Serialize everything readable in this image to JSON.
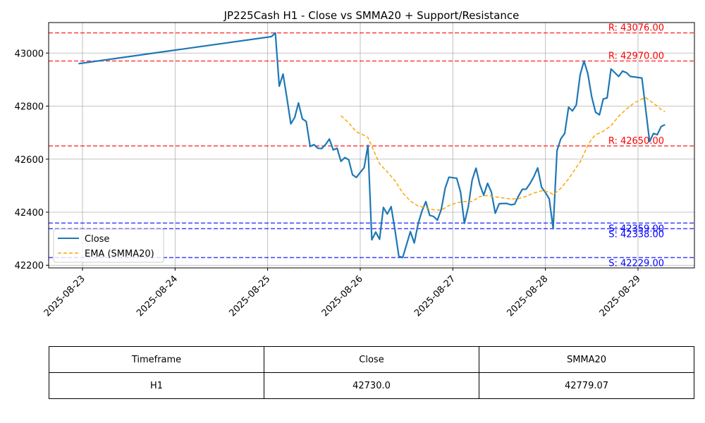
{
  "chart_data": {
    "type": "line",
    "title": "JP225Cash H1 - Close vs SMMA20 + Support/Resistance",
    "xlabel": "",
    "ylabel": "",
    "x_ticks": [
      "2025-08-23",
      "2025-08-24",
      "2025-08-25",
      "2025-08-26",
      "2025-08-27",
      "2025-08-28",
      "2025-08-29"
    ],
    "y_ticks": [
      42200,
      42400,
      42600,
      42800,
      43000
    ],
    "ylim": [
      42190,
      43115
    ],
    "grid": true,
    "legend_position": "lower-left",
    "series": [
      {
        "name": "Close",
        "color": "#1f77b4",
        "style": "solid",
        "points": [
          [
            "2025-08-22T23:00",
            42960
          ],
          [
            "2025-08-25T01:00",
            43062
          ],
          [
            "2025-08-25T02:00",
            43076
          ],
          [
            "2025-08-25T03:00",
            42875
          ],
          [
            "2025-08-25T04:00",
            42921
          ],
          [
            "2025-08-25T05:00",
            42830
          ],
          [
            "2025-08-25T06:00",
            42733
          ],
          [
            "2025-08-25T07:00",
            42757
          ],
          [
            "2025-08-25T08:00",
            42812
          ],
          [
            "2025-08-25T09:00",
            42752
          ],
          [
            "2025-08-25T10:00",
            42742
          ],
          [
            "2025-08-25T11:00",
            42648
          ],
          [
            "2025-08-25T12:00",
            42655
          ],
          [
            "2025-08-25T13:00",
            42641
          ],
          [
            "2025-08-25T14:00",
            42640
          ],
          [
            "2025-08-25T15:00",
            42655
          ],
          [
            "2025-08-25T16:00",
            42676
          ],
          [
            "2025-08-25T17:00",
            42635
          ],
          [
            "2025-08-25T18:00",
            42641
          ],
          [
            "2025-08-25T19:00",
            42592
          ],
          [
            "2025-08-25T20:00",
            42606
          ],
          [
            "2025-08-25T21:00",
            42598
          ],
          [
            "2025-08-25T22:00",
            42541
          ],
          [
            "2025-08-25T23:00",
            42531
          ],
          [
            "2025-08-26T00:00",
            42550
          ],
          [
            "2025-08-26T01:00",
            42568
          ],
          [
            "2025-08-26T02:00",
            42652
          ],
          [
            "2025-08-26T03:00",
            42296
          ],
          [
            "2025-08-26T04:00",
            42325
          ],
          [
            "2025-08-26T05:00",
            42298
          ],
          [
            "2025-08-26T06:00",
            42418
          ],
          [
            "2025-08-26T07:00",
            42393
          ],
          [
            "2025-08-26T08:00",
            42421
          ],
          [
            "2025-08-26T09:00",
            42334
          ],
          [
            "2025-08-26T10:00",
            42234
          ],
          [
            "2025-08-26T11:00",
            42229
          ],
          [
            "2025-08-26T12:00",
            42278
          ],
          [
            "2025-08-26T13:00",
            42327
          ],
          [
            "2025-08-26T14:00",
            42284
          ],
          [
            "2025-08-26T15:00",
            42357
          ],
          [
            "2025-08-26T16:00",
            42404
          ],
          [
            "2025-08-26T17:00",
            42440
          ],
          [
            "2025-08-26T18:00",
            42388
          ],
          [
            "2025-08-26T19:00",
            42384
          ],
          [
            "2025-08-26T20:00",
            42370
          ],
          [
            "2025-08-26T21:00",
            42410
          ],
          [
            "2025-08-26T22:00",
            42490
          ],
          [
            "2025-08-26T23:00",
            42532
          ],
          [
            "2025-08-27T01:00",
            42528
          ],
          [
            "2025-08-27T02:00",
            42476
          ],
          [
            "2025-08-27T03:00",
            42358
          ],
          [
            "2025-08-27T04:00",
            42420
          ],
          [
            "2025-08-27T05:00",
            42521
          ],
          [
            "2025-08-27T06:00",
            42566
          ],
          [
            "2025-08-27T07:00",
            42504
          ],
          [
            "2025-08-27T08:00",
            42464
          ],
          [
            "2025-08-27T09:00",
            42509
          ],
          [
            "2025-08-27T10:00",
            42476
          ],
          [
            "2025-08-27T11:00",
            42396
          ],
          [
            "2025-08-27T12:00",
            42432
          ],
          [
            "2025-08-27T13:00",
            42433
          ],
          [
            "2025-08-27T14:00",
            42433
          ],
          [
            "2025-08-27T15:00",
            42428
          ],
          [
            "2025-08-27T16:00",
            42430
          ],
          [
            "2025-08-27T17:00",
            42460
          ],
          [
            "2025-08-27T18:00",
            42486
          ],
          [
            "2025-08-27T19:00",
            42487
          ],
          [
            "2025-08-27T20:00",
            42508
          ],
          [
            "2025-08-27T21:00",
            42534
          ],
          [
            "2025-08-27T22:00",
            42567
          ],
          [
            "2025-08-27T23:00",
            42494
          ],
          [
            "2025-08-28T00:00",
            42474
          ],
          [
            "2025-08-28T01:00",
            42450
          ],
          [
            "2025-08-28T02:00",
            42338
          ],
          [
            "2025-08-28T03:00",
            42632
          ],
          [
            "2025-08-28T04:00",
            42677
          ],
          [
            "2025-08-28T05:00",
            42697
          ],
          [
            "2025-08-28T06:00",
            42796
          ],
          [
            "2025-08-28T07:00",
            42782
          ],
          [
            "2025-08-28T08:00",
            42804
          ],
          [
            "2025-08-28T09:00",
            42918
          ],
          [
            "2025-08-28T10:00",
            42970
          ],
          [
            "2025-08-28T11:00",
            42922
          ],
          [
            "2025-08-28T12:00",
            42835
          ],
          [
            "2025-08-28T13:00",
            42777
          ],
          [
            "2025-08-28T14:00",
            42767
          ],
          [
            "2025-08-28T15:00",
            42827
          ],
          [
            "2025-08-28T16:00",
            42831
          ],
          [
            "2025-08-28T17:00",
            42940
          ],
          [
            "2025-08-28T18:00",
            42926
          ],
          [
            "2025-08-28T19:00",
            42912
          ],
          [
            "2025-08-28T20:00",
            42932
          ],
          [
            "2025-08-28T21:00",
            42926
          ],
          [
            "2025-08-28T22:00",
            42912
          ],
          [
            "2025-08-28T23:00",
            42910
          ],
          [
            "2025-08-29T01:00",
            42906
          ],
          [
            "2025-08-29T02:00",
            42788
          ],
          [
            "2025-08-29T03:00",
            42666
          ],
          [
            "2025-08-29T04:00",
            42697
          ],
          [
            "2025-08-29T05:00",
            42692
          ],
          [
            "2025-08-29T06:00",
            42723
          ],
          [
            "2025-08-29T07:00",
            42730
          ]
        ]
      },
      {
        "name": "EMA (SMMA20)",
        "color": "#ffa500",
        "style": "dashed",
        "points": [
          [
            "2025-08-25T19:00",
            42764
          ],
          [
            "2025-08-25T21:00",
            42737
          ],
          [
            "2025-08-25T23:00",
            42703
          ],
          [
            "2025-08-26T01:00",
            42690
          ],
          [
            "2025-08-26T02:00",
            42682
          ],
          [
            "2025-08-26T04:00",
            42615
          ],
          [
            "2025-08-26T05:00",
            42583
          ],
          [
            "2025-08-26T07:00",
            42552
          ],
          [
            "2025-08-26T09:00",
            42519
          ],
          [
            "2025-08-26T11:00",
            42473
          ],
          [
            "2025-08-26T13:00",
            42442
          ],
          [
            "2025-08-26T15:00",
            42423
          ],
          [
            "2025-08-26T17:00",
            42417
          ],
          [
            "2025-08-26T19:00",
            42409
          ],
          [
            "2025-08-26T21:00",
            42408
          ],
          [
            "2025-08-26T23:00",
            42425
          ],
          [
            "2025-08-27T01:00",
            42436
          ],
          [
            "2025-08-27T03:00",
            42440
          ],
          [
            "2025-08-27T05:00",
            42440
          ],
          [
            "2025-08-27T07:00",
            42459
          ],
          [
            "2025-08-27T09:00",
            42463
          ],
          [
            "2025-08-27T11:00",
            42458
          ],
          [
            "2025-08-27T13:00",
            42454
          ],
          [
            "2025-08-27T15:00",
            42450
          ],
          [
            "2025-08-27T17:00",
            42451
          ],
          [
            "2025-08-27T19:00",
            42460
          ],
          [
            "2025-08-27T21:00",
            42472
          ],
          [
            "2025-08-27T23:00",
            42481
          ],
          [
            "2025-08-28T01:00",
            42476
          ],
          [
            "2025-08-28T02:00",
            42466
          ],
          [
            "2025-08-28T04:00",
            42490
          ],
          [
            "2025-08-28T06:00",
            42526
          ],
          [
            "2025-08-28T08:00",
            42569
          ],
          [
            "2025-08-28T09:00",
            42589
          ],
          [
            "2025-08-28T11:00",
            42652
          ],
          [
            "2025-08-28T12:00",
            42676
          ],
          [
            "2025-08-28T13:00",
            42692
          ],
          [
            "2025-08-28T15:00",
            42705
          ],
          [
            "2025-08-28T17:00",
            42726
          ],
          [
            "2025-08-28T19:00",
            42762
          ],
          [
            "2025-08-28T21:00",
            42789
          ],
          [
            "2025-08-28T23:00",
            42812
          ],
          [
            "2025-08-29T01:00",
            42827
          ],
          [
            "2025-08-29T02:00",
            42832
          ],
          [
            "2025-08-29T03:00",
            42821
          ],
          [
            "2025-08-29T05:00",
            42800
          ],
          [
            "2025-08-29T06:00",
            42787
          ],
          [
            "2025-08-29T07:00",
            42779
          ]
        ]
      }
    ],
    "levels": [
      {
        "kind": "resistance",
        "value": 43076,
        "label": "R: 43076.00",
        "color": "#ff0000"
      },
      {
        "kind": "resistance",
        "value": 42970,
        "label": "R: 42970.00",
        "color": "#ff0000"
      },
      {
        "kind": "resistance",
        "value": 42650,
        "label": "R: 42650.00",
        "color": "#ff0000"
      },
      {
        "kind": "support",
        "value": 42359,
        "label": "S: 42359.00",
        "color": "#0000ff"
      },
      {
        "kind": "support",
        "value": 42338,
        "label": "S: 42338.00",
        "color": "#0000ff"
      },
      {
        "kind": "support",
        "value": 42229,
        "label": "S: 42229.00",
        "color": "#0000ff"
      }
    ]
  },
  "table": {
    "headers": [
      "Timeframe",
      "Close",
      "SMMA20"
    ],
    "rows": [
      [
        "H1",
        "42730.0",
        "42779.07"
      ]
    ]
  }
}
